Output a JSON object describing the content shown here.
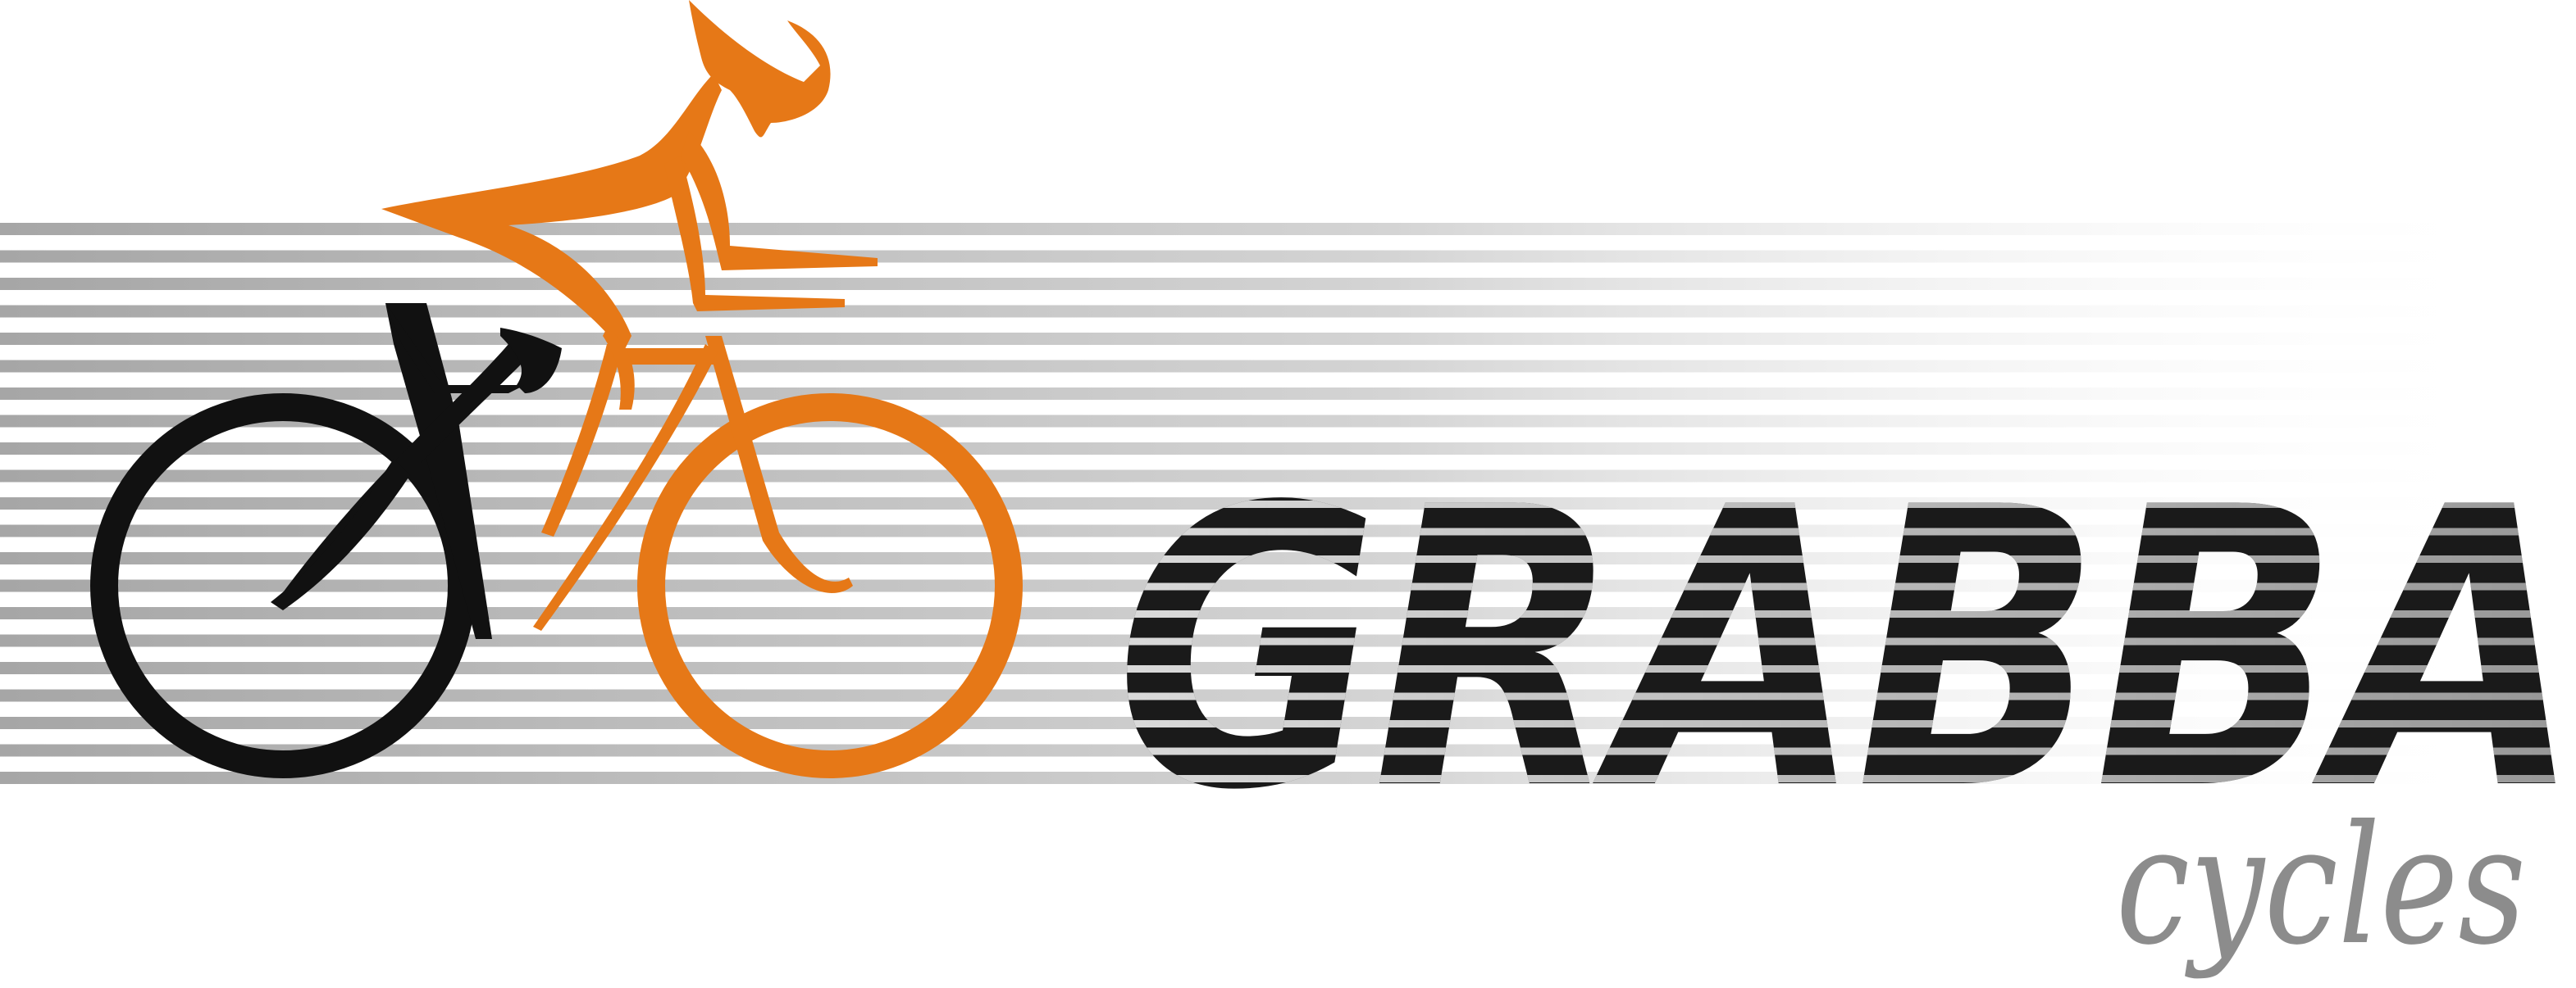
{
  "logo": {
    "wordmark": "GRABBA",
    "subtitle": "cycles",
    "colors": {
      "background": "#ffffff",
      "stripes": "#a6a6a6",
      "text_dark": "#1a1a1a",
      "accent_orange": "#e67817",
      "bike_black": "#111111",
      "subtitle_gray": "#8c8c8c"
    },
    "icon": "cyclist-on-bicycle-icon"
  }
}
